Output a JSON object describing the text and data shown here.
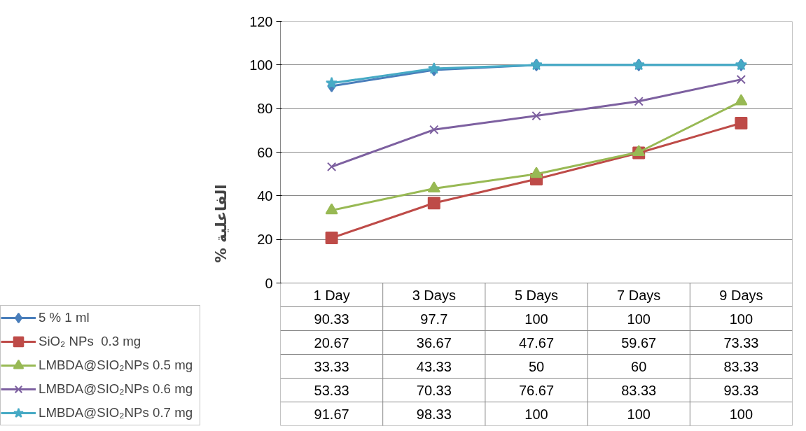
{
  "chart_data": {
    "type": "line",
    "ylabel": "% الفاعلية",
    "categories": [
      "1 Day",
      "3 Days",
      "5 Days",
      "7 Days",
      "9 Days"
    ],
    "ylim": [
      0,
      120
    ],
    "yticks": [
      0,
      20,
      40,
      60,
      80,
      100,
      120
    ],
    "grid": "y",
    "data_labels": true,
    "legend": "bottom left",
    "series": [
      {
        "name": "5 % 1 ml",
        "color": "#4a7ebb",
        "marker": "diamond",
        "values": [
          90.33,
          97.7,
          100,
          100,
          100
        ]
      },
      {
        "name": "SiO₂ NPs  0.3 mg",
        "color": "#be4b48",
        "marker": "square",
        "values": [
          20.67,
          36.67,
          47.67,
          59.67,
          73.33
        ]
      },
      {
        "name": "LMBDA@SIO₂NPs 0.5 mg",
        "color": "#98b954",
        "marker": "triangle",
        "values": [
          33.33,
          43.33,
          50,
          60,
          83.33
        ]
      },
      {
        "name": "LMBDA@SIO₂NPs 0.6 mg",
        "color": "#7d60a0",
        "marker": "cross",
        "values": [
          53.33,
          70.33,
          76.67,
          83.33,
          93.33
        ]
      },
      {
        "name": "LMBDA@SIO₂NPs 0.7 mg",
        "color": "#46aac5",
        "marker": "star",
        "values": [
          91.67,
          98.33,
          100,
          100,
          100
        ]
      }
    ]
  }
}
